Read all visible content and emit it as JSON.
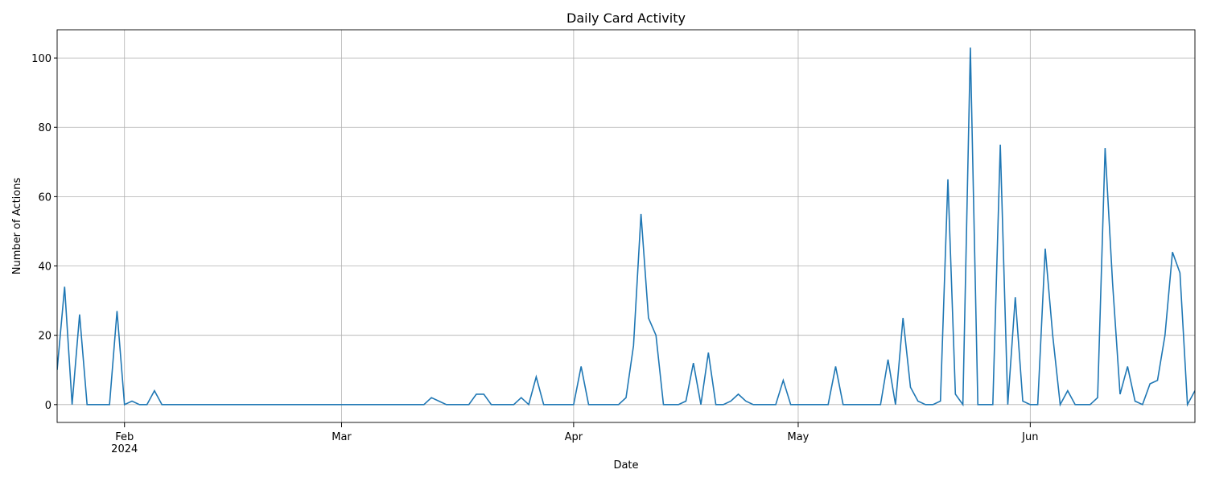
{
  "chart_data": {
    "type": "line",
    "title": "Daily Card Activity",
    "x_label": "Date",
    "y_label": "Number of Actions",
    "x": [
      0,
      1,
      2,
      3,
      4,
      5,
      6,
      7,
      8,
      9,
      10,
      11,
      12,
      13,
      14,
      15,
      16,
      17,
      18,
      19,
      20,
      21,
      22,
      23,
      24,
      25,
      26,
      27,
      28,
      29,
      30,
      31,
      32,
      33,
      34,
      35,
      36,
      37,
      38,
      39,
      40,
      41,
      42,
      43,
      44,
      45,
      46,
      47,
      48,
      49,
      50,
      51,
      52,
      53,
      54,
      55,
      56,
      57,
      58,
      59,
      60,
      61,
      62,
      63,
      64,
      65,
      66,
      67,
      68,
      69,
      70,
      71,
      72,
      73,
      74,
      75,
      76,
      77,
      78,
      79,
      80,
      81,
      82,
      83,
      84,
      85,
      86,
      87,
      88,
      89,
      90,
      91,
      92,
      93,
      94,
      95,
      96,
      97,
      98,
      99,
      100,
      101,
      102,
      103,
      104,
      105,
      106,
      107,
      108,
      109,
      110,
      111,
      112,
      113,
      114,
      115,
      116,
      117,
      118,
      119,
      120,
      121,
      122,
      123,
      124,
      125,
      126,
      127,
      128,
      129,
      130,
      131,
      132,
      133,
      134,
      135,
      136,
      137,
      138,
      139,
      140,
      141,
      142,
      143,
      144,
      145,
      146,
      147,
      148,
      149,
      150,
      151,
      152
    ],
    "values": [
      10,
      34,
      0,
      26,
      0,
      0,
      0,
      0,
      27,
      0,
      1,
      0,
      0,
      4,
      0,
      0,
      0,
      0,
      0,
      0,
      0,
      0,
      0,
      0,
      0,
      0,
      0,
      0,
      0,
      0,
      0,
      0,
      0,
      0,
      0,
      0,
      0,
      0,
      0,
      0,
      0,
      0,
      0,
      0,
      0,
      0,
      0,
      0,
      0,
      0,
      2,
      1,
      0,
      0,
      0,
      0,
      3,
      3,
      0,
      0,
      0,
      0,
      2,
      0,
      8,
      0,
      0,
      0,
      0,
      0,
      11,
      0,
      0,
      0,
      0,
      0,
      2,
      17,
      55,
      25,
      20,
      0,
      0,
      0,
      1,
      12,
      0,
      15,
      0,
      0,
      1,
      3,
      1,
      0,
      0,
      0,
      0,
      7,
      0,
      0,
      0,
      0,
      0,
      0,
      11,
      0,
      0,
      0,
      0,
      0,
      0,
      13,
      0,
      25,
      5,
      1,
      0,
      0,
      1,
      65,
      3,
      0,
      103,
      0,
      0,
      0,
      75,
      0,
      31,
      1,
      0,
      0,
      45,
      20,
      0,
      4,
      0,
      0,
      0,
      2,
      74,
      35,
      3,
      11,
      1,
      0,
      6,
      7,
      20,
      44,
      38,
      0,
      4
    ],
    "color": "#1f77b4",
    "xlim": [
      0,
      152
    ],
    "xticks": [
      {
        "value": 9,
        "label": "Feb\n2024"
      },
      {
        "value": 38,
        "label": "Mar"
      },
      {
        "value": 69,
        "label": "Apr"
      },
      {
        "value": 99,
        "label": "May"
      },
      {
        "value": 130,
        "label": "Jun"
      }
    ],
    "ylim": [
      -5.15,
      108.15
    ],
    "yticks": [
      0,
      20,
      40,
      60,
      80,
      100
    ],
    "grid": true
  }
}
